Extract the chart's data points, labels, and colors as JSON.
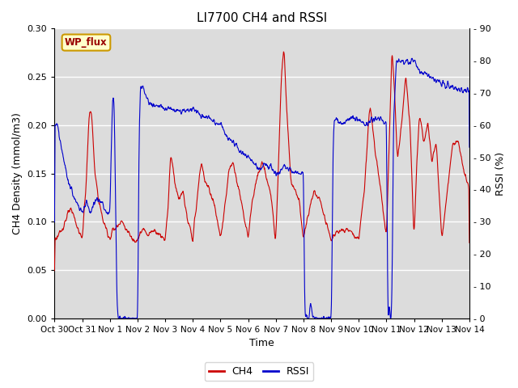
{
  "title": "LI7700 CH4 and RSSI",
  "xlabel": "Time",
  "ylabel_left": "CH4 Density (mmol/m3)",
  "ylabel_right": "RSSI (%)",
  "site_label": "WP_flux",
  "ylim_left": [
    0,
    0.3
  ],
  "ylim_right": [
    0,
    90
  ],
  "yticks_left": [
    0.0,
    0.05,
    0.1,
    0.15,
    0.2,
    0.25,
    0.3
  ],
  "yticks_right": [
    0,
    10,
    20,
    30,
    40,
    50,
    60,
    70,
    80,
    90
  ],
  "xtick_labels": [
    "Oct 30",
    "Oct 31",
    "Nov 1",
    "Nov 2",
    "Nov 3",
    "Nov 4",
    "Nov 5",
    "Nov 6",
    "Nov 7",
    "Nov 8",
    "Nov 9",
    "Nov 10",
    "Nov 11",
    "Nov 12",
    "Nov 13",
    "Nov 14"
  ],
  "color_ch4": "#cc0000",
  "color_rssi": "#0000cc",
  "plot_bg_color": "#dcdcdc",
  "linewidth": 0.8,
  "legend_ch4": "CH4",
  "legend_rssi": "RSSI",
  "title_fontsize": 11,
  "label_fontsize": 9,
  "tick_fontsize": 8
}
